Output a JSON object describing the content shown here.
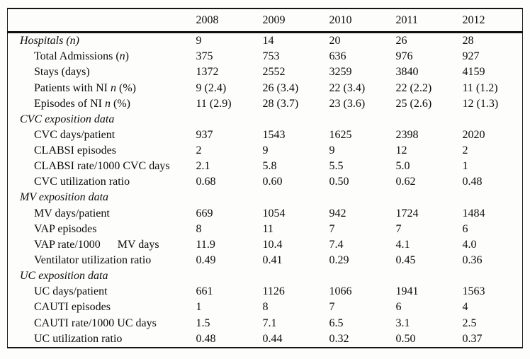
{
  "table": {
    "columns": [
      "",
      "2008",
      "2009",
      "2010",
      "2011",
      "2012"
    ],
    "rows": [
      {
        "indent": false,
        "label_parts": [
          {
            "t": "Hospitals (n)",
            "i": true
          }
        ],
        "values": [
          "9",
          "14",
          "20",
          "26",
          "28"
        ]
      },
      {
        "indent": true,
        "label_parts": [
          {
            "t": "Total Admissions (",
            "i": false
          },
          {
            "t": "n",
            "i": true
          },
          {
            "t": ")",
            "i": false
          }
        ],
        "values": [
          "375",
          "753",
          "636",
          "976",
          "927"
        ]
      },
      {
        "indent": true,
        "label_parts": [
          {
            "t": "Stays (days)",
            "i": false
          }
        ],
        "values": [
          "1372",
          "2552",
          "3259",
          "3840",
          "4159"
        ]
      },
      {
        "indent": true,
        "label_parts": [
          {
            "t": "Patients with NI ",
            "i": false
          },
          {
            "t": "n",
            "i": true
          },
          {
            "t": " (%)",
            "i": false
          }
        ],
        "values": [
          "9 (2.4)",
          "26 (3.4)",
          "22 (3.4)",
          "22 (2.2)",
          "11 (1.2)"
        ]
      },
      {
        "indent": true,
        "label_parts": [
          {
            "t": "Episodes of NI ",
            "i": false
          },
          {
            "t": "n",
            "i": true
          },
          {
            "t": " (%)",
            "i": false
          }
        ],
        "values": [
          "11 (2.9)",
          "28 (3.7)",
          "23 (3.6)",
          "25 (2.6)",
          "12 (1.3)"
        ]
      },
      {
        "indent": false,
        "label_parts": [
          {
            "t": "CVC exposition data",
            "i": true
          }
        ],
        "values": [
          "",
          "",
          "",
          "",
          ""
        ]
      },
      {
        "indent": true,
        "label_parts": [
          {
            "t": "CVC days/patient",
            "i": false
          }
        ],
        "values": [
          "937",
          "1543",
          "1625",
          "2398",
          "2020"
        ]
      },
      {
        "indent": true,
        "label_parts": [
          {
            "t": "CLABSI episodes",
            "i": false
          }
        ],
        "values": [
          "2",
          "9",
          "9",
          "12",
          "2"
        ]
      },
      {
        "indent": true,
        "label_parts": [
          {
            "t": "CLABSI rate/1000 CVC days",
            "i": false
          }
        ],
        "values": [
          "2.1",
          "5.8",
          "5.5",
          "5.0",
          "1"
        ]
      },
      {
        "indent": true,
        "label_parts": [
          {
            "t": "CVC utilization ratio",
            "i": false
          }
        ],
        "values": [
          "0.68",
          "0.60",
          "0.50",
          "0.62",
          "0.48"
        ]
      },
      {
        "indent": false,
        "label_parts": [
          {
            "t": "MV exposition data",
            "i": true
          }
        ],
        "values": [
          "",
          "",
          "",
          "",
          ""
        ]
      },
      {
        "indent": true,
        "label_parts": [
          {
            "t": "MV days/patient",
            "i": false
          }
        ],
        "values": [
          "669",
          "1054",
          "942",
          "1724",
          "1484"
        ]
      },
      {
        "indent": true,
        "label_parts": [
          {
            "t": "VAP episodes",
            "i": false
          }
        ],
        "values": [
          "8",
          "11",
          "7",
          "7",
          "6"
        ]
      },
      {
        "indent": true,
        "label_parts": [
          {
            "t": "VAP rate/1000      MV days",
            "i": false
          }
        ],
        "values": [
          "11.9",
          "10.4",
          "7.4",
          "4.1",
          "4.0"
        ]
      },
      {
        "indent": true,
        "label_parts": [
          {
            "t": "Ventilator utilization ratio",
            "i": false
          }
        ],
        "values": [
          "0.49",
          "0.41",
          "0.29",
          "0.45",
          "0.36"
        ]
      },
      {
        "indent": false,
        "label_parts": [
          {
            "t": "UC exposition data",
            "i": true
          }
        ],
        "values": [
          "",
          "",
          "",
          "",
          ""
        ]
      },
      {
        "indent": true,
        "label_parts": [
          {
            "t": "UC days/patient",
            "i": false
          }
        ],
        "values": [
          "661",
          "1126",
          "1066",
          "1941",
          "1563"
        ]
      },
      {
        "indent": true,
        "label_parts": [
          {
            "t": "CAUTI episodes",
            "i": false
          }
        ],
        "values": [
          "1",
          "8",
          "7",
          "6",
          "4"
        ]
      },
      {
        "indent": true,
        "label_parts": [
          {
            "t": "CAUTI rate/1000 UC days",
            "i": false
          }
        ],
        "values": [
          "1.5",
          "7.1",
          "6.5",
          "3.1",
          "2.5"
        ]
      },
      {
        "indent": true,
        "label_parts": [
          {
            "t": "UC utilization ratio",
            "i": false
          }
        ],
        "values": [
          "0.48",
          "0.44",
          "0.32",
          "0.50",
          "0.37"
        ]
      }
    ]
  }
}
